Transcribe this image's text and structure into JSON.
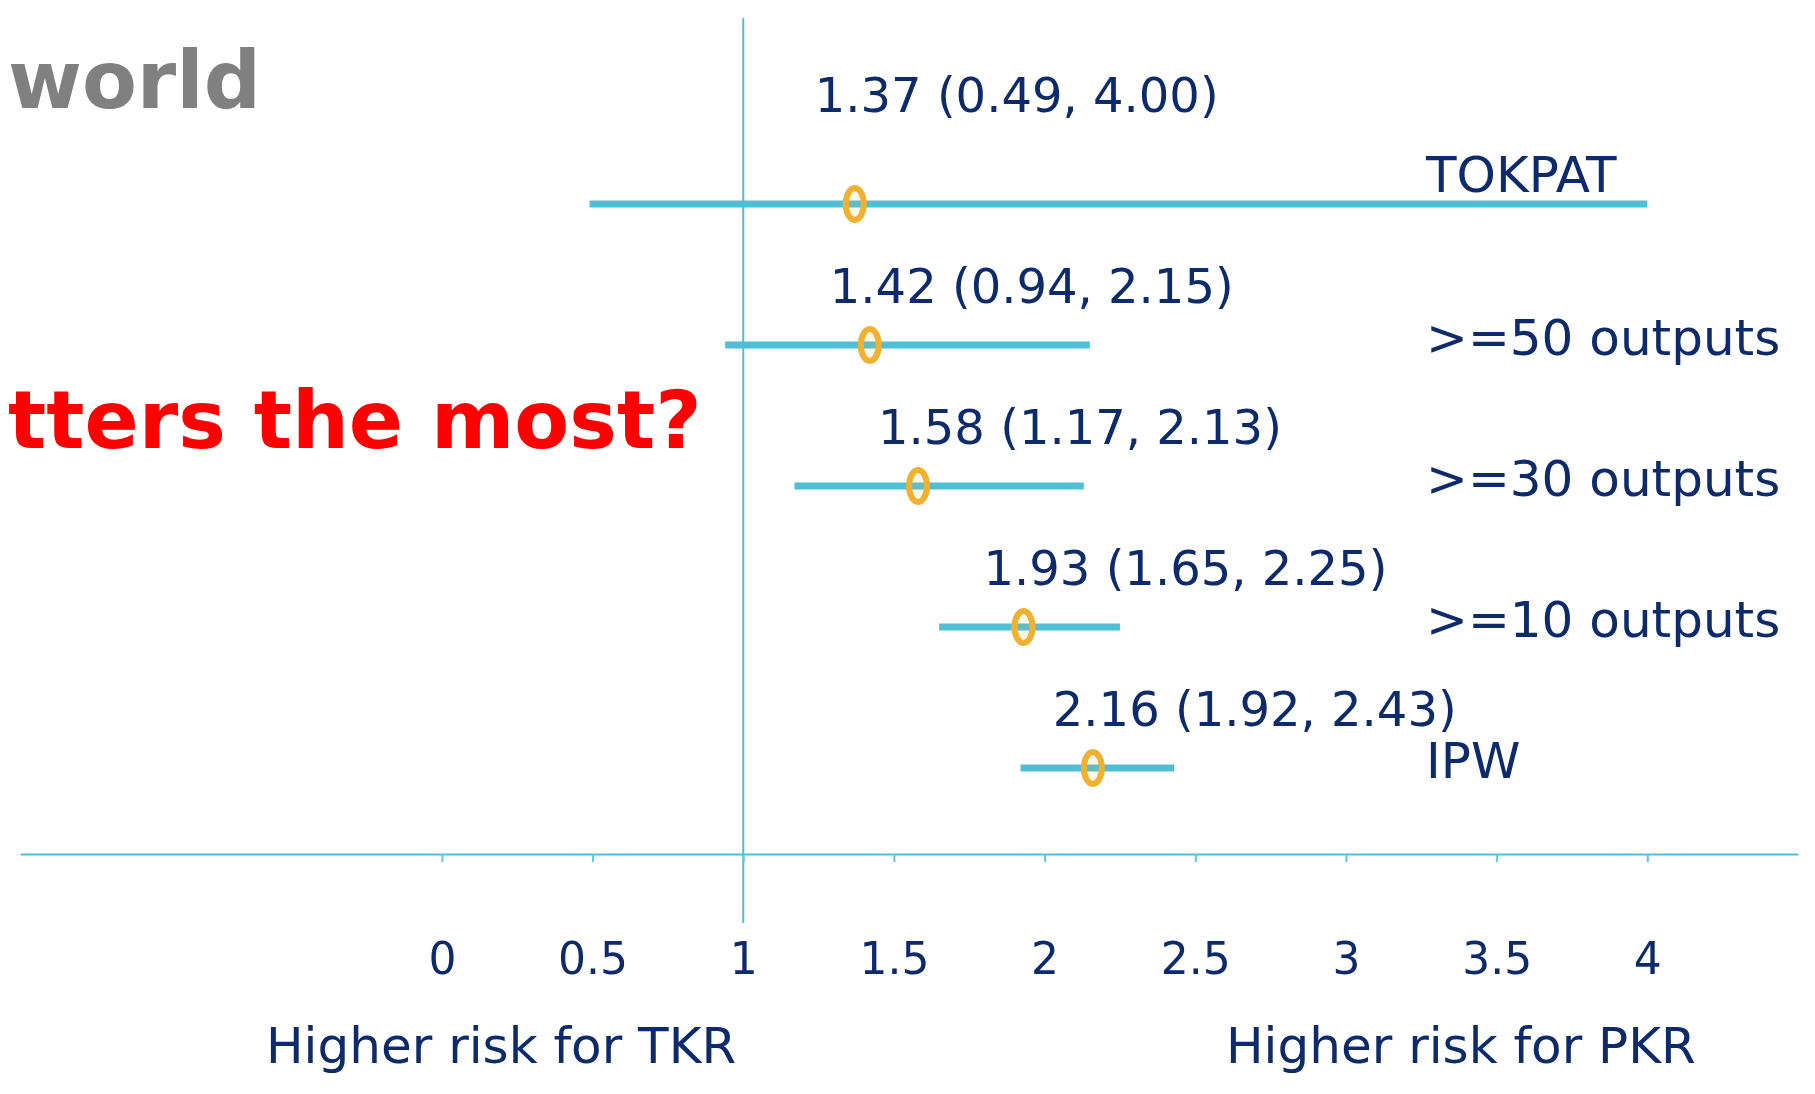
{
  "chart_data": {
    "type": "scatter",
    "orientation": "horizontal",
    "annotations": [
      "world",
      "tters the most?",
      "Higher risk for TKR",
      "Higher risk for PKR"
    ],
    "categories": [
      "TOKPAT",
      ">=50 outputs",
      ">=30 outputs",
      ">=10 outputs",
      "IPW"
    ],
    "values": [
      1.37,
      1.42,
      1.58,
      1.93,
      2.16
    ],
    "errors": [
      [
        0.49,
        4.0
      ],
      [
        0.94,
        2.15
      ],
      [
        1.17,
        2.13
      ],
      [
        1.65,
        2.25
      ],
      [
        1.92,
        2.43
      ]
    ],
    "value_labels": [
      "1.37 (0.49, 4.00)",
      "1.42 (0.94, 2.15)",
      "1.58 (1.17, 2.13)",
      "1.93 (1.65, 2.25)",
      "2.16 (1.92, 2.43)"
    ],
    "color": "#f0b030",
    "xlim": [
      -1.4,
      4.5
    ],
    "xticks": [
      0,
      0.5,
      1,
      1.5,
      2,
      2.5,
      3,
      3.5,
      4
    ],
    "ref_lines": [
      {
        "axis": "x",
        "value": 1,
        "color": "#4fbfd6"
      }
    ],
    "marker": "circle",
    "grid": false
  }
}
